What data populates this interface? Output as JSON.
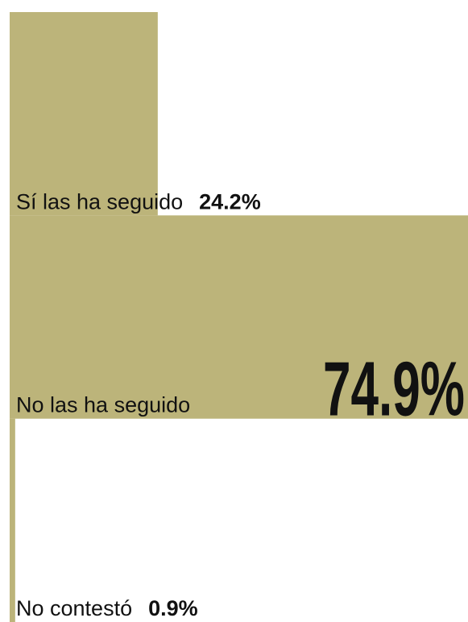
{
  "chart_data": {
    "type": "bar",
    "orientation": "horizontal",
    "color": "#bcb47a",
    "categories": [
      "Sí las ha seguido",
      "No las ha seguido",
      "No contestó"
    ],
    "values": [
      24.2,
      74.9,
      0.9
    ],
    "value_labels": [
      "24.2%",
      "74.9%",
      "0.9%"
    ]
  }
}
